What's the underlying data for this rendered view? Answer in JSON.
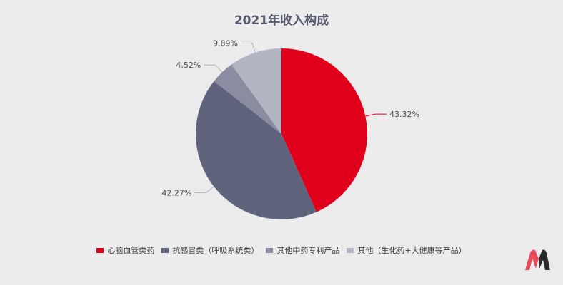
{
  "colors": {
    "background": "#ececec",
    "title": "#555a6e",
    "label": "#4a4a4a",
    "leader": "#b0b0b0",
    "logo_left": "#e84a5a",
    "logo_right": "#2b2b2b"
  },
  "chart_data": {
    "type": "pie",
    "title": "2021年收入构成",
    "start_angle_deg": 0,
    "direction": "clockwise",
    "legend_position": "bottom",
    "slices": [
      {
        "label": "心脑血管类药",
        "value": 43.32,
        "value_label": "43.32%",
        "color": "#e1001b"
      },
      {
        "label": "抗感冒类（呼吸系统类）",
        "value": 42.27,
        "value_label": "42.27%",
        "color": "#60637c"
      },
      {
        "label": "其他中药专利产品",
        "value": 4.52,
        "value_label": "4.52%",
        "color": "#8a8da2"
      },
      {
        "label": "其他（生化药+大健康等产品）",
        "value": 9.89,
        "value_label": "9.89%",
        "color": "#b3b5c3"
      }
    ]
  }
}
